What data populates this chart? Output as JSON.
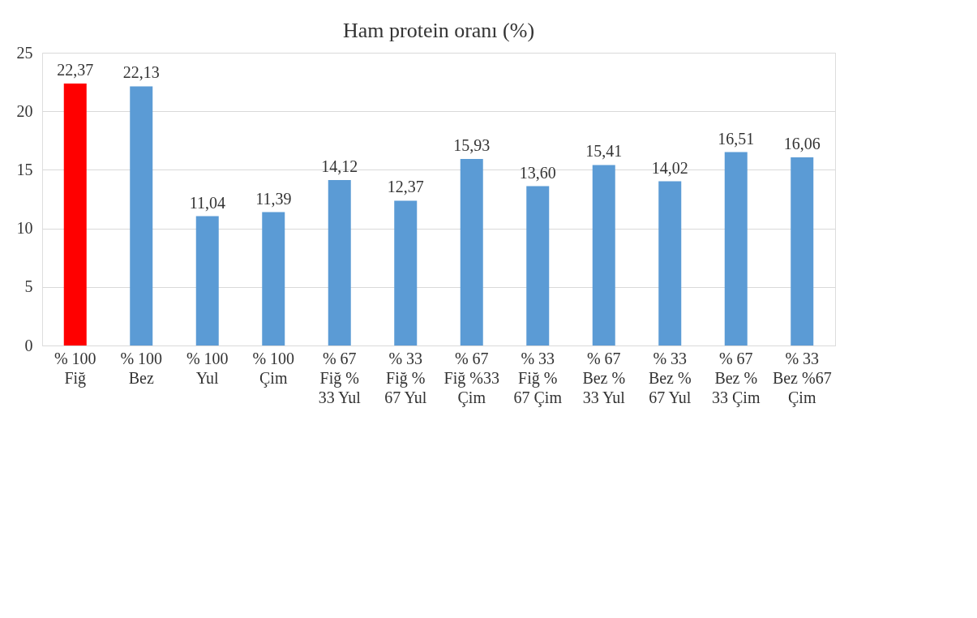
{
  "chart_data": {
    "type": "bar",
    "title": "Ham protein oranı (%)",
    "categories": [
      "% 100\nFiğ",
      "% 100\nBez",
      "% 100\nYul",
      "% 100\nÇim",
      "% 67\nFiğ %\n33 Yul",
      "% 33\nFiğ %\n67 Yul",
      "% 67\nFiğ %33\nÇim",
      "% 33\nFiğ %\n67 Çim",
      "% 67\nBez %\n33 Yul",
      "% 33\nBez %\n67 Yul",
      "% 67\nBez %\n33 Çim",
      "% 33\nBez %67\nÇim"
    ],
    "values": [
      22.37,
      22.13,
      11.04,
      11.39,
      14.12,
      12.37,
      15.93,
      13.6,
      15.41,
      14.02,
      16.51,
      16.06
    ],
    "value_labels": [
      "22,37",
      "22,13",
      "11,04",
      "11,39",
      "14,12",
      "12,37",
      "15,93",
      "13,60",
      "15,41",
      "14,02",
      "16,51",
      "16,06"
    ],
    "colors": [
      "#ff0000",
      "#5b9bd5",
      "#5b9bd5",
      "#5b9bd5",
      "#5b9bd5",
      "#5b9bd5",
      "#5b9bd5",
      "#5b9bd5",
      "#5b9bd5",
      "#5b9bd5",
      "#5b9bd5",
      "#5b9bd5"
    ],
    "ylim": [
      0,
      25
    ],
    "yticks": [
      0,
      5,
      10,
      15,
      20,
      25
    ],
    "grid": "y"
  }
}
